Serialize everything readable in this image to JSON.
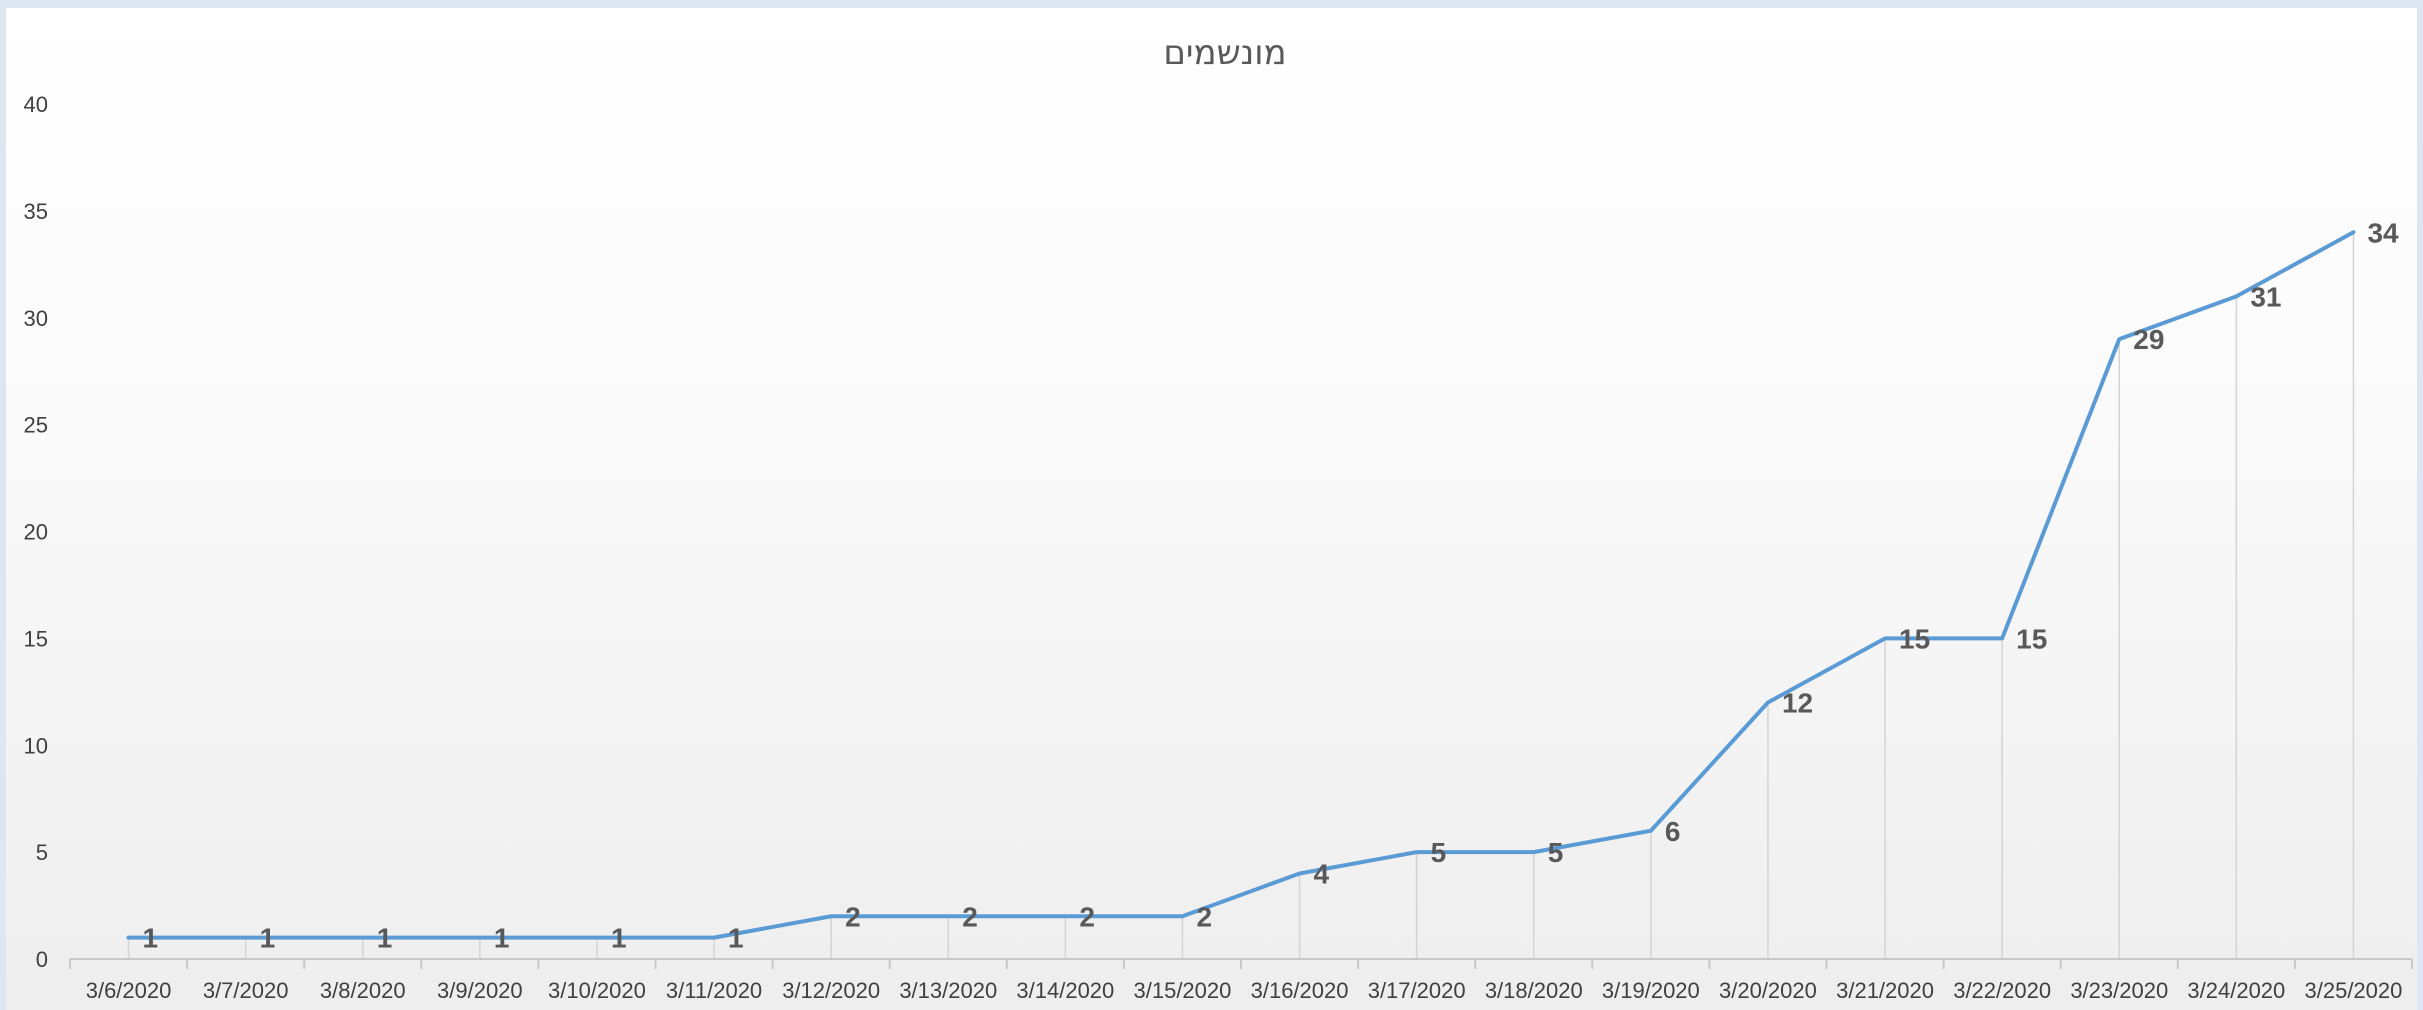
{
  "chart_data": {
    "type": "line",
    "title": "מונשמים",
    "xlabel": "",
    "ylabel": "",
    "categories": [
      "3/6/2020",
      "3/7/2020",
      "3/8/2020",
      "3/9/2020",
      "3/10/2020",
      "3/11/2020",
      "3/12/2020",
      "3/13/2020",
      "3/14/2020",
      "3/15/2020",
      "3/16/2020",
      "3/17/2020",
      "3/18/2020",
      "3/19/2020",
      "3/20/2020",
      "3/21/2020",
      "3/22/2020",
      "3/23/2020",
      "3/24/2020",
      "3/25/2020"
    ],
    "values": [
      1,
      1,
      1,
      1,
      1,
      1,
      2,
      2,
      2,
      2,
      4,
      5,
      5,
      6,
      12,
      15,
      15,
      29,
      31,
      34
    ],
    "ylim": [
      0,
      40
    ],
    "yticks": [
      0,
      5,
      10,
      15,
      20,
      25,
      30,
      35,
      40
    ],
    "grid": "vertical drop lines",
    "legend": "none",
    "data_labels": true,
    "series_color": "#5b9bd5"
  }
}
